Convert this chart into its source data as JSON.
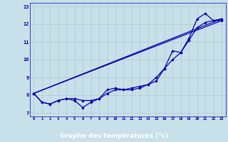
{
  "title": "",
  "xlabel": "Graphe des températures (°c)",
  "bg_color": "#c8e0ea",
  "line_color": "#0000aa",
  "grid_color": "#aacccc",
  "bottom_bar_color": "#0000aa",
  "bottom_label_color": "#ffffff",
  "xlim": [
    -0.5,
    23.5
  ],
  "ylim": [
    6.8,
    13.2
  ],
  "xticks": [
    0,
    1,
    2,
    3,
    4,
    5,
    6,
    7,
    8,
    9,
    10,
    11,
    12,
    13,
    14,
    15,
    16,
    17,
    18,
    19,
    20,
    21,
    22,
    23
  ],
  "yticks": [
    7,
    8,
    9,
    10,
    11,
    12,
    13
  ],
  "line1": [
    8.1,
    7.6,
    7.5,
    7.7,
    7.8,
    7.7,
    7.3,
    7.6,
    7.8,
    8.3,
    8.4,
    8.3,
    8.4,
    8.5,
    8.6,
    8.8,
    9.5,
    10.5,
    10.4,
    11.2,
    12.3,
    12.6,
    12.2,
    12.3
  ],
  "line2": [
    8.1,
    7.6,
    7.5,
    7.7,
    7.8,
    7.8,
    7.7,
    7.7,
    7.8,
    8.1,
    8.3,
    8.3,
    8.3,
    8.4,
    8.6,
    9.0,
    9.5,
    10.0,
    10.4,
    11.1,
    11.8,
    12.1,
    12.2,
    12.2
  ],
  "line3": [
    [
      0,
      23
    ],
    [
      8.1,
      12.2
    ]
  ],
  "line4": [
    [
      0,
      23
    ],
    [
      8.1,
      12.3
    ]
  ]
}
